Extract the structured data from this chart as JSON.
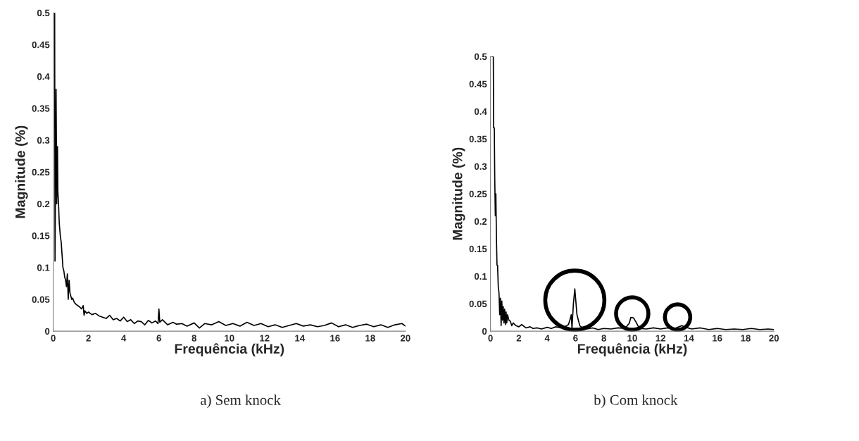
{
  "chart_data": [
    {
      "type": "line",
      "xlabel": "Frequência (kHz)",
      "ylabel": "Magnitude (%)",
      "xlim": [
        0,
        20
      ],
      "ylim": [
        0,
        0.5
      ],
      "xticks": [
        0,
        2,
        4,
        6,
        8,
        10,
        12,
        14,
        16,
        18,
        20
      ],
      "yticks": [
        0,
        0.05,
        0.1,
        0.15,
        0.2,
        0.25,
        0.3,
        0.35,
        0.4,
        0.45,
        0.5
      ],
      "grid": false,
      "annotations": [
        "a) Sem knock"
      ],
      "series": [
        {
          "color": "#000000",
          "x": [
            0.08,
            0.1,
            0.12,
            0.16,
            0.2,
            0.24,
            0.26,
            0.28,
            0.3,
            0.34,
            0.4,
            0.45,
            0.5,
            0.55,
            0.6,
            0.65,
            0.7,
            0.75,
            0.8,
            0.85,
            0.9,
            0.95,
            1.0,
            1.05,
            1.1,
            1.2,
            1.3,
            1.4,
            1.5,
            1.6,
            1.7,
            1.75,
            1.8,
            1.9,
            2.0,
            2.2,
            2.4,
            2.6,
            2.8,
            3.0,
            3.2,
            3.4,
            3.6,
            3.8,
            4.0,
            4.2,
            4.4,
            4.6,
            4.8,
            5.0,
            5.2,
            5.4,
            5.6,
            5.8,
            5.95,
            6.0,
            6.05,
            6.2,
            6.5,
            6.8,
            7.0,
            7.3,
            7.6,
            8.0,
            8.3,
            8.6,
            9.0,
            9.4,
            9.8,
            10.2,
            10.6,
            11.0,
            11.4,
            11.8,
            12.2,
            12.6,
            13.0,
            13.4,
            13.8,
            14.2,
            14.6,
            15.0,
            15.4,
            15.8,
            16.2,
            16.6,
            17.0,
            17.4,
            17.8,
            18.2,
            18.6,
            19.0,
            19.4,
            19.8,
            20.0
          ],
          "values": [
            0.5,
            0.11,
            0.2,
            0.38,
            0.2,
            0.29,
            0.22,
            0.21,
            0.2,
            0.17,
            0.15,
            0.14,
            0.12,
            0.1,
            0.095,
            0.085,
            0.08,
            0.07,
            0.09,
            0.05,
            0.08,
            0.06,
            0.055,
            0.05,
            0.052,
            0.045,
            0.042,
            0.04,
            0.038,
            0.035,
            0.04,
            0.025,
            0.032,
            0.028,
            0.03,
            0.026,
            0.028,
            0.024,
            0.022,
            0.02,
            0.025,
            0.018,
            0.02,
            0.016,
            0.022,
            0.015,
            0.018,
            0.012,
            0.016,
            0.015,
            0.01,
            0.017,
            0.013,
            0.016,
            0.012,
            0.035,
            0.014,
            0.018,
            0.01,
            0.014,
            0.011,
            0.012,
            0.008,
            0.013,
            0.005,
            0.012,
            0.01,
            0.015,
            0.009,
            0.012,
            0.008,
            0.014,
            0.009,
            0.012,
            0.007,
            0.01,
            0.006,
            0.009,
            0.012,
            0.008,
            0.01,
            0.007,
            0.009,
            0.013,
            0.007,
            0.01,
            0.006,
            0.009,
            0.011,
            0.007,
            0.01,
            0.006,
            0.01,
            0.012,
            0.008
          ]
        }
      ]
    },
    {
      "type": "line",
      "xlabel": "Frequência (kHz)",
      "ylabel": "Magnitude (%)",
      "xlim": [
        0,
        20
      ],
      "ylim": [
        0,
        0.5
      ],
      "xticks": [
        0,
        2,
        4,
        6,
        8,
        10,
        12,
        14,
        16,
        18,
        20
      ],
      "yticks": [
        0,
        0.05,
        0.1,
        0.15,
        0.2,
        0.25,
        0.3,
        0.35,
        0.4,
        0.45,
        0.5
      ],
      "grid": false,
      "annotations": [
        "b) Com knock"
      ],
      "series": [
        {
          "color": "#000000",
          "x": [
            0.1,
            0.2,
            0.22,
            0.27,
            0.3,
            0.34,
            0.38,
            0.42,
            0.46,
            0.5,
            0.55,
            0.6,
            0.65,
            0.7,
            0.75,
            0.8,
            0.85,
            0.9,
            0.95,
            1.0,
            1.05,
            1.1,
            1.15,
            1.2,
            1.3,
            1.4,
            1.5,
            1.6,
            1.8,
            2.0,
            2.2,
            2.5,
            2.8,
            3.0,
            3.3,
            3.6,
            4.0,
            4.3,
            4.6,
            5.0,
            5.3,
            5.5,
            5.6,
            5.7,
            5.75,
            5.85,
            5.95,
            6.1,
            6.3,
            6.5,
            6.8,
            7.2,
            7.6,
            8.0,
            8.5,
            9.0,
            9.5,
            9.8,
            9.9,
            10.1,
            10.3,
            10.5,
            11.0,
            11.5,
            12.0,
            12.5,
            13.0,
            13.3,
            13.5,
            13.8,
            14.2,
            14.8,
            15.4,
            16.0,
            16.6,
            17.2,
            17.8,
            18.4,
            19.0,
            19.6,
            20.0
          ],
          "values": [
            0.5,
            0.5,
            0.37,
            0.37,
            0.28,
            0.21,
            0.25,
            0.17,
            0.12,
            0.12,
            0.08,
            0.07,
            0.03,
            0.06,
            0.01,
            0.055,
            0.02,
            0.045,
            0.015,
            0.04,
            0.012,
            0.035,
            0.015,
            0.03,
            0.02,
            0.018,
            0.01,
            0.015,
            0.01,
            0.008,
            0.012,
            0.006,
            0.008,
            0.005,
            0.006,
            0.004,
            0.007,
            0.005,
            0.008,
            0.006,
            0.009,
            0.012,
            0.02,
            0.03,
            0.005,
            0.05,
            0.077,
            0.03,
            0.01,
            0.006,
            0.004,
            0.006,
            0.003,
            0.005,
            0.004,
            0.006,
            0.005,
            0.015,
            0.025,
            0.024,
            0.015,
            0.005,
            0.004,
            0.006,
            0.004,
            0.006,
            0.005,
            0.008,
            0.01,
            0.007,
            0.004,
            0.006,
            0.003,
            0.005,
            0.003,
            0.004,
            0.003,
            0.005,
            0.003,
            0.004,
            0.003
          ]
        }
      ]
    }
  ]
}
